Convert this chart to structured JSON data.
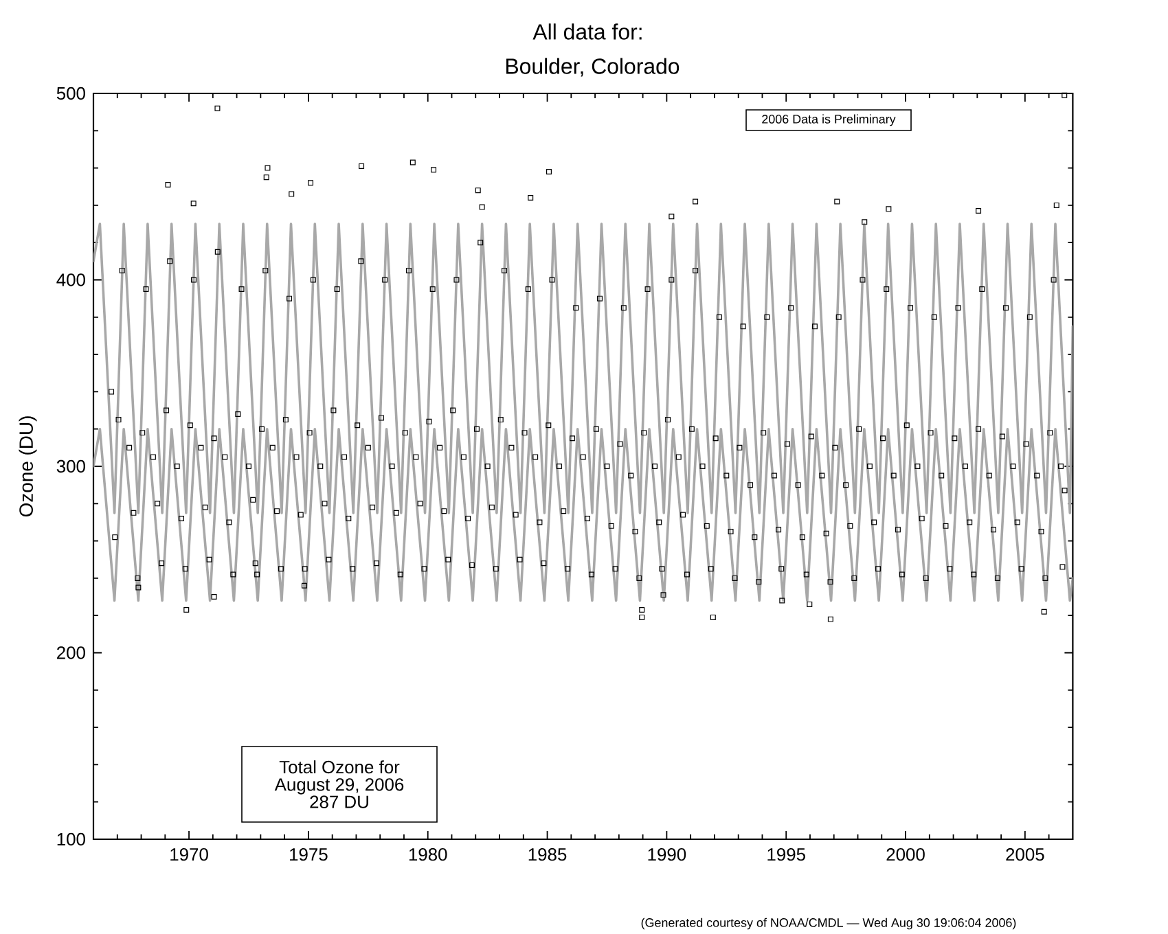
{
  "chart_data": {
    "type": "scatter",
    "title": "All data for:",
    "subtitle": "Boulder, Colorado",
    "ylabel": "Ozone (DU)",
    "annotations": [
      "2006 Data is Preliminary",
      "Total Ozone for",
      "August 29, 2006",
      "287 DU",
      "(Generated courtesy of NOAA/CMDL — Wed Aug 30 19:06:04 2006)"
    ],
    "xlim": [
      1966,
      2007
    ],
    "ylim": [
      100,
      500
    ],
    "xticks": [
      {
        "value": 1967,
        "label": null
      },
      {
        "value": 1968,
        "label": null
      },
      {
        "value": 1969,
        "label": null
      },
      1970,
      {
        "value": 1971,
        "label": null
      },
      {
        "value": 1972,
        "label": null
      },
      {
        "value": 1973,
        "label": null
      },
      {
        "value": 1974,
        "label": null
      },
      1975,
      {
        "value": 1976,
        "label": null
      },
      {
        "value": 1977,
        "label": null
      },
      {
        "value": 1978,
        "label": null
      },
      {
        "value": 1979,
        "label": null
      },
      1980,
      {
        "value": 1981,
        "label": null
      },
      {
        "value": 1982,
        "label": null
      },
      {
        "value": 1983,
        "label": null
      },
      {
        "value": 1984,
        "label": null
      },
      1985,
      {
        "value": 1986,
        "label": null
      },
      {
        "value": 1987,
        "label": null
      },
      {
        "value": 1988,
        "label": null
      },
      {
        "value": 1989,
        "label": null
      },
      1990,
      {
        "value": 1991,
        "label": null
      },
      {
        "value": 1992,
        "label": null
      },
      {
        "value": 1993,
        "label": null
      },
      {
        "value": 1994,
        "label": null
      },
      1995,
      {
        "value": 1996,
        "label": null
      },
      {
        "value": 1997,
        "label": null
      },
      {
        "value": 1998,
        "label": null
      },
      {
        "value": 1999,
        "label": null
      },
      2000,
      {
        "value": 2001,
        "label": null
      },
      {
        "value": 2002,
        "label": null
      },
      {
        "value": 2003,
        "label": null
      },
      {
        "value": 2004,
        "label": null
      },
      2005,
      {
        "value": 2006,
        "label": null
      }
    ],
    "yticks": [
      100,
      {
        "value": 120,
        "label": null
      },
      {
        "value": 140,
        "label": null
      },
      {
        "value": 160,
        "label": null
      },
      {
        "value": 180,
        "label": null
      },
      200,
      {
        "value": 220,
        "label": null
      },
      {
        "value": 240,
        "label": null
      },
      {
        "value": 260,
        "label": null
      },
      {
        "value": 280,
        "label": null
      },
      300,
      {
        "value": 320,
        "label": null
      },
      {
        "value": 340,
        "label": null
      },
      {
        "value": 360,
        "label": null
      },
      {
        "value": 380,
        "label": null
      },
      400,
      {
        "value": 420,
        "label": null
      },
      {
        "value": 440,
        "label": null
      },
      {
        "value": 460,
        "label": null
      },
      {
        "value": 480,
        "label": null
      },
      500
    ],
    "marker": "square",
    "series": [
      {
        "type": "line",
        "marker": "none",
        "color": "#a8a8a8",
        "x": [
          1966.0,
          1966.27,
          1966.88,
          1967.27,
          1967.88,
          1968.27,
          1968.88,
          1969.27,
          1969.88,
          1970.27,
          1970.88,
          1971.27,
          1971.88,
          1972.27,
          1972.88,
          1973.27,
          1973.88,
          1974.27,
          1974.88,
          1975.27,
          1975.88,
          1976.27,
          1976.88,
          1977.27,
          1977.88,
          1978.27,
          1978.88,
          1979.27,
          1979.88,
          1980.27,
          1980.88,
          1981.27,
          1981.88,
          1982.27,
          1982.88,
          1983.27,
          1983.88,
          1984.27,
          1984.88,
          1985.27,
          1985.88,
          1986.27,
          1986.88,
          1987.27,
          1987.88,
          1988.27,
          1988.88,
          1989.27,
          1989.88,
          1990.27,
          1990.88,
          1991.27,
          1991.88,
          1992.27,
          1992.88,
          1993.27,
          1993.88,
          1994.27,
          1994.88,
          1995.27,
          1995.88,
          1996.27,
          1996.88,
          1997.27,
          1997.88,
          1998.27,
          1998.88,
          1999.27,
          1999.88,
          2000.27,
          2000.88,
          2001.27,
          2001.88,
          2002.27,
          2002.88,
          2003.27,
          2003.88,
          2004.27,
          2004.88,
          2005.27,
          2005.88,
          2006.27,
          2006.88,
          2007.0
        ],
        "values": [
          410,
          430,
          275,
          430,
          275,
          430,
          275,
          430,
          275,
          430,
          275,
          430,
          275,
          430,
          275,
          430,
          275,
          430,
          275,
          430,
          275,
          430,
          275,
          430,
          275,
          430,
          275,
          430,
          275,
          430,
          275,
          430,
          275,
          430,
          275,
          430,
          275,
          430,
          275,
          430,
          275,
          430,
          275,
          430,
          275,
          430,
          275,
          430,
          275,
          430,
          275,
          430,
          275,
          430,
          275,
          430,
          275,
          430,
          275,
          430,
          275,
          430,
          275,
          430,
          275,
          430,
          275,
          430,
          275,
          430,
          275,
          430,
          275,
          430,
          275,
          430,
          275,
          430,
          275,
          430,
          275,
          430,
          275,
          375
        ]
      },
      {
        "type": "line",
        "marker": "none",
        "color": "#a8a8a8",
        "x": [
          1966.0,
          1966.27,
          1966.88,
          1967.27,
          1967.88,
          1968.27,
          1968.88,
          1969.27,
          1969.88,
          1970.27,
          1970.88,
          1971.27,
          1971.88,
          1972.27,
          1972.88,
          1973.27,
          1973.88,
          1974.27,
          1974.88,
          1975.27,
          1975.88,
          1976.27,
          1976.88,
          1977.27,
          1977.88,
          1978.27,
          1978.88,
          1979.27,
          1979.88,
          1980.27,
          1980.88,
          1981.27,
          1981.88,
          1982.27,
          1982.88,
          1983.27,
          1983.88,
          1984.27,
          1984.88,
          1985.27,
          1985.88,
          1986.27,
          1986.88,
          1987.27,
          1987.88,
          1988.27,
          1988.88,
          1989.27,
          1989.88,
          1990.27,
          1990.88,
          1991.27,
          1991.88,
          1992.27,
          1992.88,
          1993.27,
          1993.88,
          1994.27,
          1994.88,
          1995.27,
          1995.88,
          1996.27,
          1996.88,
          1997.27,
          1997.88,
          1998.27,
          1998.88,
          1999.27,
          1999.88,
          2000.27,
          2000.88,
          2001.27,
          2001.88,
          2002.27,
          2002.88,
          2003.27,
          2003.88,
          2004.27,
          2004.88,
          2005.27,
          2005.88,
          2006.27,
          2006.88,
          2007.0
        ],
        "values": [
          300,
          320,
          228,
          320,
          228,
          320,
          228,
          320,
          228,
          320,
          228,
          320,
          228,
          320,
          228,
          320,
          228,
          320,
          228,
          320,
          228,
          320,
          228,
          320,
          228,
          320,
          228,
          320,
          228,
          320,
          228,
          320,
          228,
          320,
          228,
          320,
          228,
          320,
          228,
          320,
          228,
          320,
          228,
          320,
          228,
          320,
          228,
          320,
          228,
          320,
          228,
          320,
          228,
          320,
          228,
          320,
          228,
          320,
          228,
          320,
          228,
          320,
          228,
          320,
          228,
          320,
          228,
          320,
          228,
          320,
          228,
          320,
          228,
          320,
          228,
          320,
          228,
          320,
          228,
          320,
          228,
          320,
          228,
          240
        ]
      },
      {
        "color": "#000000",
        "x": [
          1966.75,
          1966.9,
          1967.05,
          1967.2,
          1967.5,
          1967.68,
          1967.85,
          1967.88,
          1968.05,
          1968.2,
          1968.5,
          1968.68,
          1968.85,
          1969.05,
          1969.12,
          1969.2,
          1969.5,
          1969.68,
          1969.85,
          1969.89,
          1970.05,
          1970.19,
          1970.2,
          1970.5,
          1970.68,
          1970.85,
          1971.05,
          1971.05,
          1971.19,
          1971.2,
          1971.5,
          1971.68,
          1971.85,
          1972.05,
          1972.2,
          1972.5,
          1972.68,
          1972.78,
          1972.85,
          1973.05,
          1973.2,
          1973.24,
          1973.29,
          1973.5,
          1973.68,
          1973.85,
          1974.05,
          1974.2,
          1974.29,
          1974.5,
          1974.68,
          1974.83,
          1974.85,
          1975.05,
          1975.09,
          1975.2,
          1975.5,
          1975.68,
          1975.85,
          1976.05,
          1976.2,
          1976.5,
          1976.68,
          1976.85,
          1977.05,
          1977.2,
          1977.22,
          1977.5,
          1977.68,
          1977.85,
          1978.05,
          1978.2,
          1978.5,
          1978.68,
          1978.85,
          1979.05,
          1979.2,
          1979.37,
          1979.5,
          1979.68,
          1979.85,
          1980.05,
          1980.2,
          1980.24,
          1980.5,
          1980.68,
          1980.85,
          1981.05,
          1981.2,
          1981.5,
          1981.68,
          1981.85,
          1982.05,
          1982.1,
          1982.2,
          1982.27,
          1982.5,
          1982.68,
          1982.85,
          1983.05,
          1983.2,
          1983.5,
          1983.68,
          1983.85,
          1984.05,
          1984.2,
          1984.3,
          1984.5,
          1984.68,
          1984.85,
          1985.05,
          1985.07,
          1985.2,
          1985.5,
          1985.68,
          1985.85,
          1986.05,
          1986.2,
          1986.5,
          1986.68,
          1986.85,
          1987.05,
          1987.2,
          1987.5,
          1987.68,
          1987.85,
          1988.05,
          1988.2,
          1988.5,
          1988.68,
          1988.85,
          1988.96,
          1988.96,
          1989.05,
          1989.2,
          1989.5,
          1989.68,
          1989.8,
          1989.86,
          1990.05,
          1990.2,
          1990.2,
          1990.5,
          1990.68,
          1990.85,
          1991.05,
          1991.2,
          1991.2,
          1991.5,
          1991.68,
          1991.85,
          1991.94,
          1992.05,
          1992.2,
          1992.5,
          1992.68,
          1992.85,
          1993.05,
          1993.2,
          1993.5,
          1993.68,
          1993.85,
          1994.05,
          1994.2,
          1994.5,
          1994.68,
          1994.8,
          1994.83,
          1995.05,
          1995.2,
          1995.5,
          1995.68,
          1995.85,
          1995.98,
          1996.05,
          1996.2,
          1996.5,
          1996.68,
          1996.85,
          1996.86,
          1997.05,
          1997.13,
          1997.2,
          1997.5,
          1997.68,
          1997.85,
          1998.05,
          1998.2,
          1998.28,
          1998.5,
          1998.68,
          1998.85,
          1999.05,
          1999.2,
          1999.29,
          1999.5,
          1999.68,
          1999.85,
          2000.05,
          2000.2,
          2000.5,
          2000.68,
          2000.85,
          2001.05,
          2001.2,
          2001.5,
          2001.68,
          2001.85,
          2002.05,
          2002.2,
          2002.5,
          2002.68,
          2002.85,
          2003.05,
          2003.05,
          2003.2,
          2003.5,
          2003.68,
          2003.85,
          2004.05,
          2004.2,
          2004.5,
          2004.68,
          2004.85,
          2005.05,
          2005.2,
          2005.5,
          2005.68,
          2005.8,
          2005.85,
          2006.05,
          2006.2,
          2006.32,
          2006.5,
          2006.57,
          2006.65,
          2006.66
        ],
        "values": [
          340,
          262,
          325,
          405,
          310,
          275,
          240,
          235,
          318,
          395,
          305,
          280,
          248,
          330,
          451,
          410,
          300,
          272,
          245,
          223,
          322,
          441,
          400,
          310,
          278,
          250,
          230,
          315,
          492,
          415,
          305,
          270,
          242,
          328,
          395,
          300,
          282,
          248,
          242,
          320,
          405,
          455,
          460,
          310,
          276,
          245,
          325,
          390,
          446,
          305,
          274,
          236,
          245,
          318,
          452,
          400,
          300,
          280,
          250,
          330,
          395,
          305,
          272,
          245,
          322,
          410,
          461,
          310,
          278,
          248,
          326,
          400,
          300,
          275,
          242,
          318,
          405,
          463,
          305,
          280,
          245,
          324,
          395,
          459,
          310,
          276,
          250,
          330,
          400,
          305,
          272,
          247,
          320,
          448,
          420,
          439,
          300,
          278,
          245,
          325,
          405,
          310,
          274,
          250,
          318,
          395,
          444,
          305,
          270,
          248,
          322,
          458,
          400,
          300,
          276,
          245,
          315,
          385,
          305,
          272,
          242,
          320,
          390,
          300,
          268,
          245,
          312,
          385,
          295,
          265,
          240,
          223,
          219,
          318,
          395,
          300,
          270,
          245,
          231,
          325,
          400,
          434,
          305,
          274,
          242,
          320,
          405,
          442,
          300,
          268,
          245,
          219,
          315,
          380,
          295,
          265,
          240,
          310,
          375,
          290,
          262,
          238,
          318,
          380,
          295,
          266,
          245,
          228,
          312,
          385,
          290,
          262,
          242,
          226,
          316,
          375,
          295,
          264,
          238,
          218,
          310,
          442,
          380,
          290,
          268,
          240,
          320,
          400,
          431,
          300,
          270,
          245,
          315,
          395,
          438,
          295,
          266,
          242,
          322,
          385,
          300,
          272,
          240,
          318,
          380,
          295,
          268,
          245,
          315,
          385,
          300,
          270,
          242,
          320,
          437,
          395,
          295,
          266,
          240,
          316,
          385,
          300,
          270,
          245,
          312,
          380,
          295,
          265,
          222,
          240,
          318,
          400,
          440,
          300,
          246,
          499,
          287
        ]
      }
    ]
  }
}
